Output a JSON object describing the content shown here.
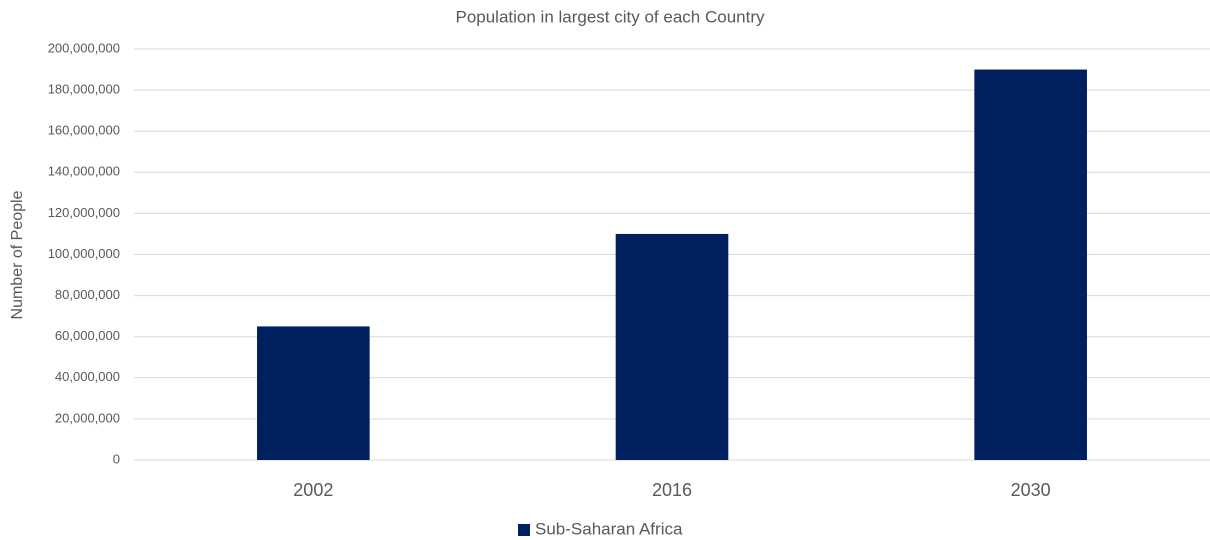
{
  "chart_data": {
    "type": "bar",
    "title": "Population in largest city of each Country",
    "y_label": "Number of People",
    "categories": [
      "2002",
      "2016",
      "2030"
    ],
    "series": [
      {
        "name": "Sub-Saharan Africa",
        "color": "#002060",
        "values": [
          65000000,
          110000000,
          190000000
        ]
      }
    ],
    "ylim": [
      0,
      200000000
    ],
    "yticks": [
      0,
      {
        "value": 20000000,
        "label": "20,000,000"
      },
      {
        "value": 40000000,
        "label": "40,000,000"
      },
      {
        "value": 60000000,
        "label": "60,000,000"
      },
      {
        "value": 80000000,
        "label": "80,000,000"
      },
      {
        "value": 100000000,
        "label": "100,000,000"
      },
      {
        "value": 120000000,
        "label": "120,000,000"
      },
      {
        "value": 140000000,
        "label": "140,000,000"
      },
      {
        "value": 160000000,
        "label": "160,000,000"
      },
      {
        "value": 180000000,
        "label": "180,000,000"
      },
      {
        "value": 200000000,
        "label": "200,000,000"
      }
    ],
    "grid": true,
    "legend": "bottom"
  }
}
